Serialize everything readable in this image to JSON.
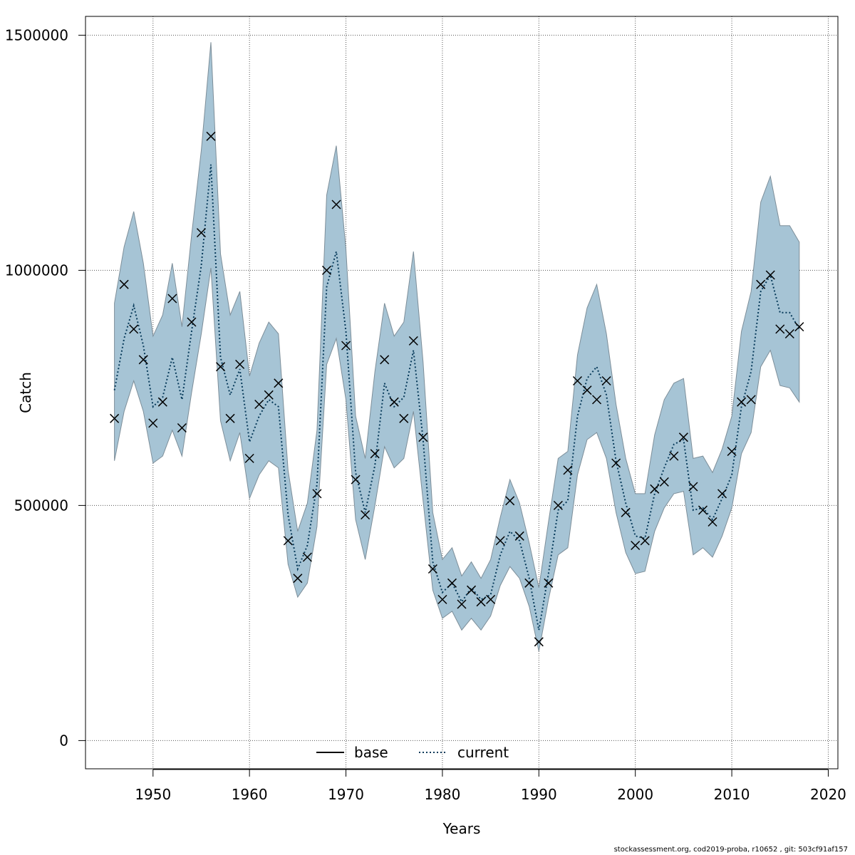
{
  "chart_data": {
    "type": "line",
    "xlabel": "Years",
    "ylabel": "Catch",
    "xlim": [
      1943,
      2021
    ],
    "ylim": [
      -60000,
      1540000
    ],
    "x_ticks": [
      1950,
      1960,
      1970,
      1980,
      1990,
      2000,
      2010,
      2020
    ],
    "y_ticks": [
      0,
      500000,
      1000000,
      1500000
    ],
    "grid": true,
    "legend_position": "bottom",
    "colors": {
      "band": "#a6c4d5",
      "band_edge": "#7d8e99",
      "current_line": "#073a5a",
      "base_line": "#000000",
      "observed": "#000000"
    },
    "legend": [
      {
        "label": "base",
        "style": "solid"
      },
      {
        "label": "current",
        "style": "dotted"
      }
    ],
    "x": [
      1946,
      1947,
      1948,
      1949,
      1950,
      1951,
      1952,
      1953,
      1954,
      1955,
      1956,
      1957,
      1958,
      1959,
      1960,
      1961,
      1962,
      1963,
      1964,
      1965,
      1966,
      1967,
      1968,
      1969,
      1970,
      1971,
      1972,
      1973,
      1974,
      1975,
      1976,
      1977,
      1978,
      1979,
      1980,
      1981,
      1982,
      1983,
      1984,
      1985,
      1986,
      1987,
      1988,
      1989,
      1990,
      1991,
      1992,
      1993,
      1994,
      1995,
      1996,
      1997,
      1998,
      1999,
      2000,
      2001,
      2002,
      2003,
      2004,
      2005,
      2006,
      2007,
      2008,
      2009,
      2010,
      2011,
      2012,
      2013,
      2014,
      2015,
      2016,
      2017
    ],
    "series": [
      {
        "name": "current",
        "values": [
          745000,
          855000,
          925000,
          840000,
          710000,
          730000,
          815000,
          725000,
          870000,
          1010000,
          1225000,
          815000,
          735000,
          790000,
          635000,
          690000,
          725000,
          710000,
          480000,
          365000,
          415000,
          545000,
          965000,
          1040000,
          870000,
          570000,
          485000,
          585000,
          760000,
          710000,
          730000,
          830000,
          640000,
          380000,
          315000,
          335000,
          295000,
          325000,
          300000,
          310000,
          395000,
          445000,
          425000,
          345000,
          235000,
          355000,
          490000,
          510000,
          690000,
          770000,
          795000,
          735000,
          595000,
          505000,
          435000,
          430000,
          525000,
          580000,
          630000,
          640000,
          490000,
          495000,
          470000,
          515000,
          565000,
          710000,
          785000,
          955000,
          990000,
          910000,
          910000,
          875000
        ]
      },
      {
        "name": "upper",
        "values": [
          930000,
          1050000,
          1125000,
          1015000,
          860000,
          905000,
          1015000,
          880000,
          1075000,
          1255000,
          1485000,
          1035000,
          905000,
          955000,
          775000,
          845000,
          890000,
          865000,
          575000,
          445000,
          505000,
          660000,
          1160000,
          1265000,
          1045000,
          690000,
          600000,
          785000,
          930000,
          860000,
          890000,
          1040000,
          805000,
          485000,
          385000,
          410000,
          350000,
          380000,
          345000,
          385000,
          475000,
          555000,
          505000,
          420000,
          325000,
          465000,
          600000,
          615000,
          820000,
          920000,
          970000,
          865000,
          715000,
          600000,
          525000,
          525000,
          650000,
          725000,
          760000,
          770000,
          600000,
          605000,
          570000,
          620000,
          690000,
          870000,
          955000,
          1145000,
          1200000,
          1095000,
          1095000,
          1060000
        ]
      },
      {
        "name": "lower",
        "values": [
          595000,
          700000,
          765000,
          700000,
          590000,
          605000,
          660000,
          605000,
          740000,
          865000,
          1005000,
          680000,
          595000,
          655000,
          515000,
          565000,
          595000,
          580000,
          375000,
          305000,
          335000,
          455000,
          800000,
          855000,
          725000,
          470000,
          385000,
          500000,
          625000,
          580000,
          600000,
          700000,
          510000,
          320000,
          260000,
          275000,
          235000,
          260000,
          235000,
          265000,
          330000,
          370000,
          345000,
          285000,
          190000,
          300000,
          395000,
          410000,
          565000,
          640000,
          655000,
          600000,
          485000,
          400000,
          355000,
          360000,
          445000,
          495000,
          525000,
          530000,
          395000,
          410000,
          390000,
          435000,
          495000,
          610000,
          655000,
          795000,
          830000,
          755000,
          750000,
          720000
        ]
      },
      {
        "name": "observed",
        "values": [
          685000,
          970000,
          875000,
          810000,
          675000,
          720000,
          940000,
          665000,
          890000,
          1080000,
          1285000,
          795000,
          685000,
          800000,
          600000,
          715000,
          735000,
          760000,
          425000,
          345000,
          390000,
          525000,
          1000000,
          1140000,
          840000,
          555000,
          480000,
          610000,
          810000,
          720000,
          685000,
          850000,
          645000,
          365000,
          300000,
          335000,
          290000,
          320000,
          295000,
          300000,
          425000,
          510000,
          435000,
          335000,
          210000,
          335000,
          500000,
          575000,
          765000,
          745000,
          725000,
          765000,
          590000,
          485000,
          415000,
          425000,
          535000,
          550000,
          605000,
          645000,
          540000,
          490000,
          465000,
          525000,
          615000,
          720000,
          725000,
          970000,
          990000,
          875000,
          865000,
          880000
        ]
      }
    ]
  },
  "footer": "stockassessment.org, cod2019-proba, r10652 , git: 503cf91af157"
}
